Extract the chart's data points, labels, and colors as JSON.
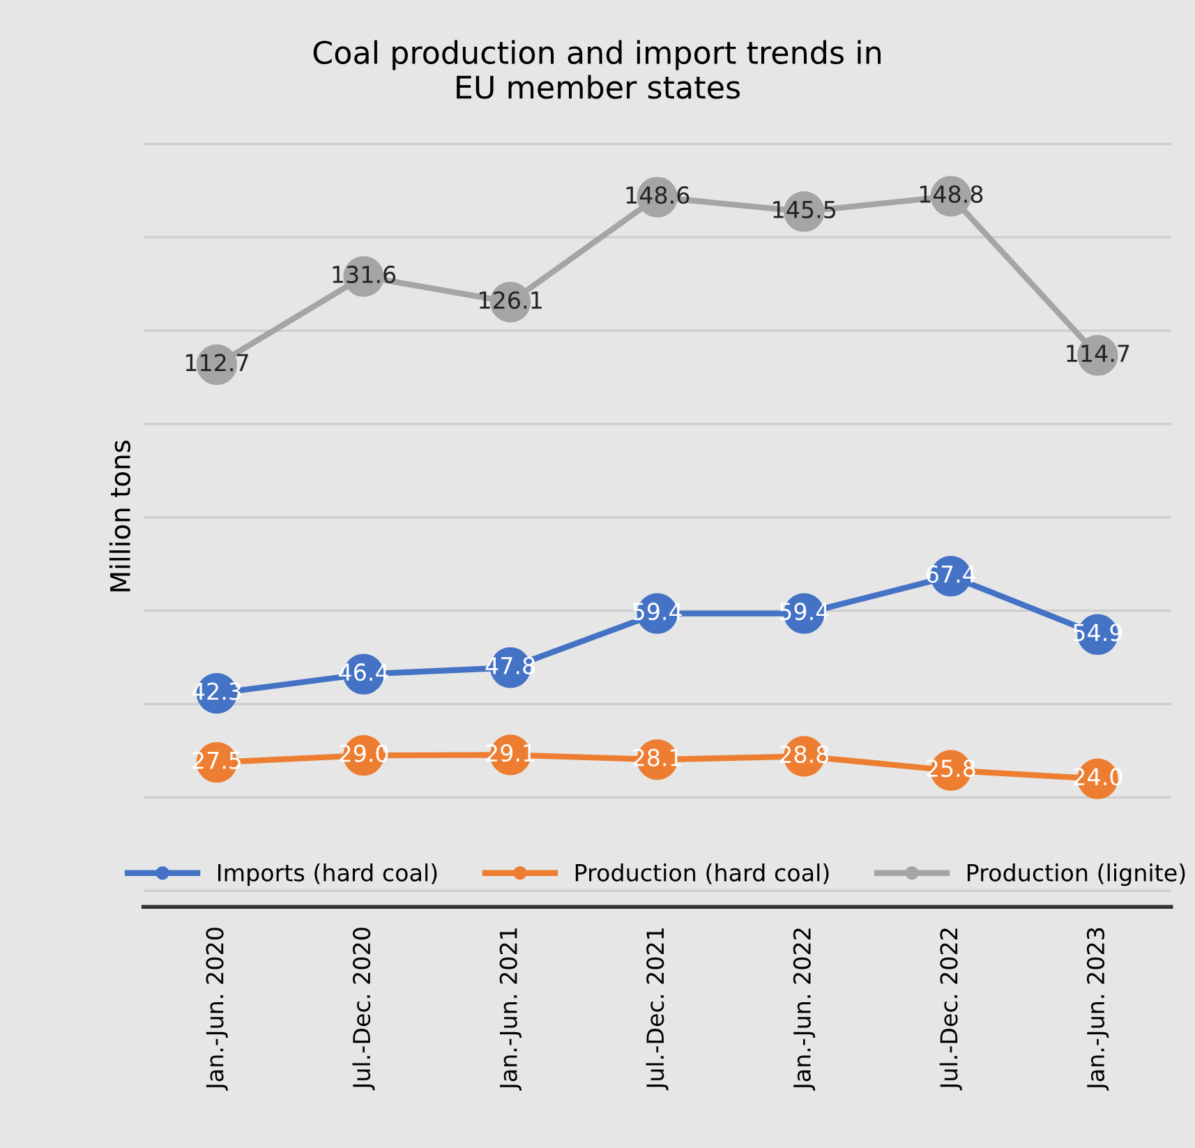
{
  "chart_data": {
    "type": "line",
    "title": "Coal production and import trends in\nEU member states",
    "ylabel": "Million tons",
    "categories": [
      "Jan.-Jun. 2020",
      "Jul.-Dec. 2020",
      "Jan.-Jun. 2021",
      "Jul.-Dec. 2021",
      "Jan.-Jun. 2022",
      "Jul.-Dec. 2022",
      "Jan.-Jun. 2023"
    ],
    "series": [
      {
        "name": "Imports (hard coal)",
        "color": "#4472c4",
        "values": [
          42.3,
          46.4,
          47.8,
          59.4,
          59.4,
          67.4,
          54.9
        ],
        "value_labels": [
          "42.3",
          "46.4",
          "47.8",
          "59.4",
          "59.4",
          "67.4",
          "54.9"
        ]
      },
      {
        "name": "Production (hard coal)",
        "color": "#ed7d31",
        "values": [
          27.5,
          29.0,
          29.1,
          28.1,
          28.8,
          25.8,
          24.0
        ],
        "value_labels": [
          "27.5",
          "29.0",
          "29.1",
          "28.1",
          "28.8",
          "25.8",
          "24.0"
        ]
      },
      {
        "name": "Production (lignite)",
        "color": "#a5a5a5",
        "values": [
          112.7,
          131.6,
          126.1,
          148.6,
          145.5,
          148.8,
          114.7
        ],
        "value_labels": [
          "112.7",
          "131.6",
          "126.1",
          "148.6",
          "145.5",
          "148.8",
          "114.7"
        ]
      }
    ],
    "tick_labels": "x",
    "grid": "y",
    "legend": "bottom",
    "marker": "circle",
    "line_style": "solid"
  }
}
